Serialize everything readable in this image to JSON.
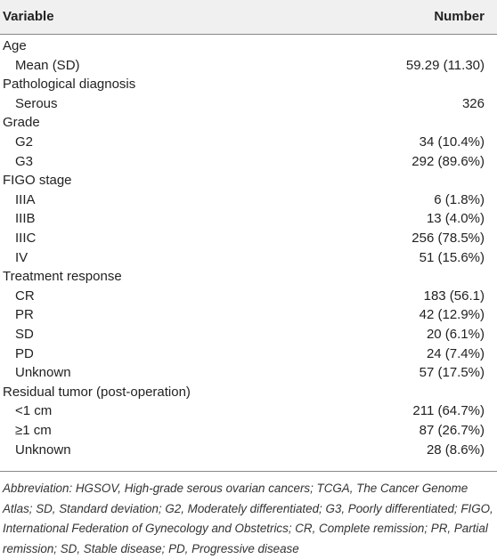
{
  "header": {
    "variable": "Variable",
    "number": "Number"
  },
  "groups": [
    {
      "label": "Age",
      "rows": [
        [
          "Mean (SD)",
          "59.29 (11.30)"
        ]
      ]
    },
    {
      "label": "Pathological diagnosis",
      "rows": [
        [
          "Serous",
          "326"
        ]
      ]
    },
    {
      "label": "Grade",
      "rows": [
        [
          "G2",
          "34 (10.4%)"
        ],
        [
          "G3",
          "292 (89.6%)"
        ]
      ]
    },
    {
      "label": "FIGO stage",
      "rows": [
        [
          "IIIA",
          "6 (1.8%)"
        ],
        [
          "IIIB",
          "13 (4.0%)"
        ],
        [
          "IIIC",
          "256 (78.5%)"
        ],
        [
          "IV",
          "51 (15.6%)"
        ]
      ]
    },
    {
      "label": "Treatment response",
      "rows": [
        [
          "CR",
          "183 (56.1)"
        ],
        [
          "PR",
          "42 (12.9%)"
        ],
        [
          "SD",
          "20 (6.1%)"
        ],
        [
          "PD",
          "24 (7.4%)"
        ],
        [
          "Unknown",
          "57 (17.5%)"
        ]
      ]
    },
    {
      "label": "Residual tumor (post-operation)",
      "rows": [
        [
          "<1 cm",
          "211 (64.7%)"
        ],
        [
          "≥1 cm",
          "87 (26.7%)"
        ],
        [
          "Unknown",
          "28 (8.6%)"
        ]
      ]
    }
  ],
  "footnote": "Abbreviation: HGSOV, High-grade serous ovarian cancers; TCGA, The Cancer Genome Atlas; SD, Standard deviation; G2, Moderately differentiated; G3, Poorly differentiated; FIGO, International Federation of Gynecology and Obstetrics; CR, Complete remission; PR, Partial remission; SD, Stable disease; PD, Progressive disease"
}
